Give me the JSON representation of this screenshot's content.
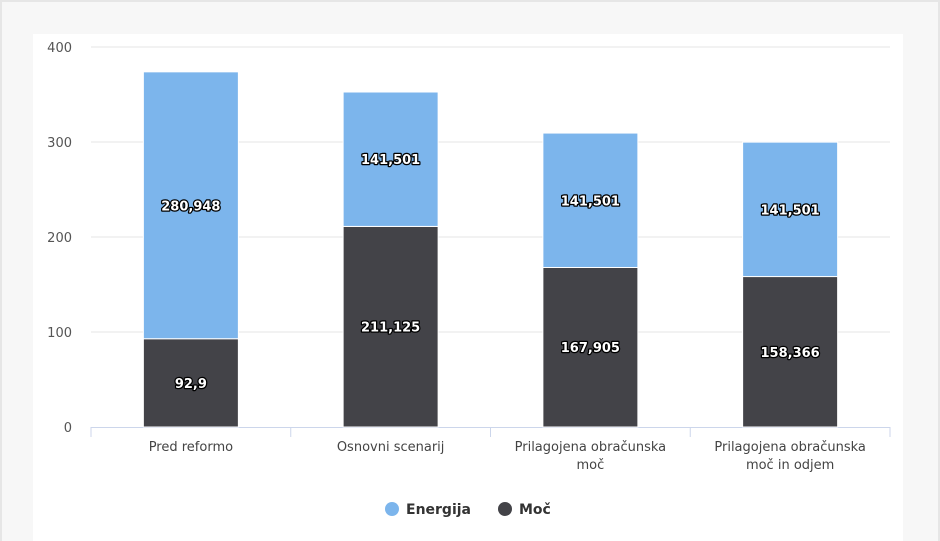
{
  "chart_data": {
    "type": "bar",
    "stacked": true,
    "title": "",
    "xlabel": "",
    "ylabel": "",
    "ylim": [
      0,
      400
    ],
    "yticks": [
      0,
      100,
      200,
      300,
      400
    ],
    "grid": true,
    "legend_position": "bottom",
    "categories": [
      [
        "Pred reformo"
      ],
      [
        "Osnovni scenarij"
      ],
      [
        "Prilagojena obračunska",
        "moč"
      ],
      [
        "Prilagojena obračunska",
        "moč in odjem"
      ]
    ],
    "series": [
      {
        "name": "Moč",
        "color": "#434348",
        "values": [
          92.9,
          211.125,
          167.905,
          158.366
        ],
        "labels": [
          "92,9",
          "211,125",
          "167,905",
          "158,366"
        ]
      },
      {
        "name": "Energija",
        "color": "#7cb5ec",
        "values": [
          280.948,
          141.501,
          141.501,
          141.501
        ],
        "labels": [
          "280,948",
          "141,501",
          "141,501",
          "141,501"
        ]
      }
    ],
    "legend_order": [
      "Energija",
      "Moč"
    ]
  }
}
